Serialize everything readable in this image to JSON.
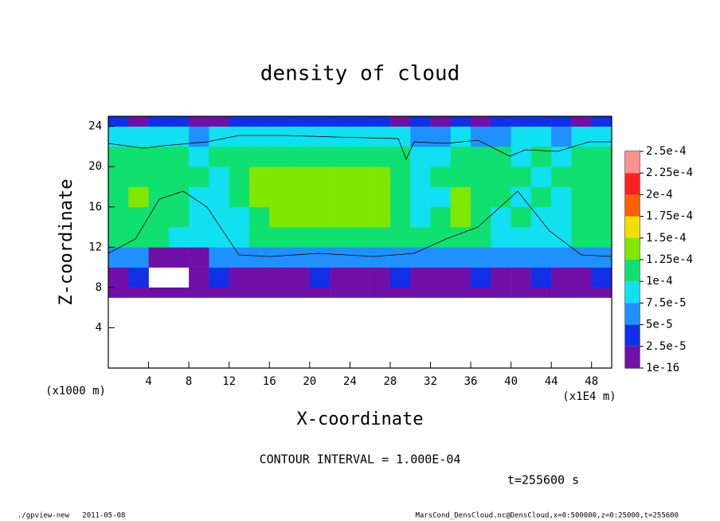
{
  "chart_data": {
    "type": "heatmap",
    "title": "density of cloud",
    "xlabel": "X-coordinate",
    "ylabel": "Z-coordinate",
    "x_unit": "(x1E4 m)",
    "y_unit": "(x1000 m)",
    "xlim": [
      0,
      50
    ],
    "ylim": [
      0,
      25
    ],
    "xticks": [
      4,
      8,
      12,
      16,
      20,
      24,
      28,
      32,
      36,
      40,
      44,
      48
    ],
    "yticks": [
      4,
      8,
      12,
      16,
      20,
      24
    ],
    "xbins": [
      0,
      2,
      4,
      6,
      8,
      10,
      12,
      14,
      16,
      18,
      20,
      22,
      24,
      26,
      28,
      30,
      32,
      34,
      36,
      38,
      40,
      42,
      44,
      46,
      48,
      50
    ],
    "ybins": [
      0,
      7,
      8,
      10,
      12,
      14,
      16,
      18,
      20,
      22,
      24,
      25
    ],
    "z": [
      [
        null,
        null,
        null,
        null,
        null,
        null,
        null,
        null,
        null,
        null,
        null,
        null,
        null,
        null,
        null,
        null,
        null,
        null,
        null,
        null,
        null,
        null,
        null,
        null,
        null
      ],
      [
        5e-06,
        5e-06,
        5e-06,
        5e-06,
        5e-06,
        5e-06,
        5e-06,
        5e-06,
        5e-06,
        5e-06,
        5e-06,
        5e-06,
        5e-06,
        5e-06,
        5e-06,
        5e-06,
        5e-06,
        5e-06,
        5e-06,
        5e-06,
        5e-06,
        5e-06,
        5e-06,
        5e-06,
        5e-06
      ],
      [
        2e-05,
        3e-05,
        null,
        null,
        2e-05,
        3e-05,
        1e-05,
        2e-05,
        1e-05,
        2e-05,
        3e-05,
        2e-05,
        1e-05,
        2e-05,
        3e-05,
        2e-05,
        1e-05,
        2e-05,
        3e-05,
        1e-05,
        2e-05,
        3e-05,
        1e-05,
        2e-05,
        3e-05
      ],
      [
        6e-05,
        5e-05,
        1e-05,
        1e-05,
        1e-05,
        6e-05,
        6e-05,
        6e-05,
        5e-05,
        6e-05,
        6e-05,
        6e-05,
        5e-05,
        6e-05,
        6e-05,
        6e-05,
        5e-05,
        6e-05,
        6e-05,
        6e-05,
        5e-05,
        6e-05,
        6e-05,
        6e-05,
        6e-05
      ],
      [
        0.000105,
        0.00011,
        0.0001,
        8e-05,
        8e-05,
        8e-05,
        8e-05,
        0.00011,
        0.00011,
        0.00011,
        0.00011,
        0.00011,
        0.00011,
        0.00011,
        0.00011,
        0.000105,
        0.00011,
        0.00011,
        0.00011,
        8e-05,
        8e-05,
        8e-05,
        8e-05,
        0.000105,
        0.000105
      ],
      [
        0.00012,
        0.00012,
        0.000115,
        0.00011,
        8e-05,
        8e-05,
        8e-05,
        0.00012,
        0.000125,
        0.00013,
        0.00013,
        0.00013,
        0.00013,
        0.000125,
        0.00012,
        8e-05,
        0.00012,
        0.000125,
        0.00012,
        8e-05,
        0.00011,
        8e-05,
        8e-05,
        0.000115,
        0.000115
      ],
      [
        0.00012,
        0.000125,
        0.00012,
        0.000115,
        8e-05,
        8e-05,
        0.0001,
        0.000125,
        0.00013,
        0.000135,
        0.00014,
        0.000135,
        0.00013,
        0.00013,
        0.00012,
        8e-05,
        8e-05,
        0.000125,
        0.00012,
        0.00011,
        8e-05,
        0.00011,
        8e-05,
        0.000115,
        0.00012
      ],
      [
        0.00012,
        0.00012,
        0.00012,
        0.00011,
        0.00011,
        8e-05,
        0.00012,
        0.000125,
        0.00013,
        0.00013,
        0.00013,
        0.00013,
        0.00013,
        0.000125,
        0.00012,
        8e-05,
        0.00011,
        0.00012,
        0.00012,
        0.000115,
        0.00011,
        8e-05,
        0.00011,
        0.000115,
        0.00012
      ],
      [
        0.000115,
        0.000115,
        0.00011,
        0.00011,
        8e-05,
        0.00011,
        0.000115,
        0.00012,
        0.00012,
        0.00012,
        0.00012,
        0.00012,
        0.00012,
        0.00012,
        0.00011,
        8e-05,
        8e-05,
        0.00011,
        0.00011,
        0.000115,
        8e-05,
        0.000105,
        8e-05,
        0.00011,
        0.00011
      ],
      [
        8e-05,
        8e-05,
        8e-05,
        8e-05,
        5.5e-05,
        8e-05,
        8e-05,
        8e-05,
        8e-05,
        8e-05,
        8e-05,
        8e-05,
        8e-05,
        8e-05,
        8e-05,
        5.5e-05,
        5.5e-05,
        8e-05,
        5.5e-05,
        5.5e-05,
        8e-05,
        8e-05,
        5.5e-05,
        8e-05,
        8e-05
      ],
      [
        4e-05,
        2e-05,
        4e-05,
        4e-05,
        2e-05,
        2e-05,
        4e-05,
        4e-05,
        4e-05,
        4e-05,
        4e-05,
        4e-05,
        4e-05,
        4e-05,
        2e-05,
        4e-05,
        2e-05,
        4e-05,
        2e-05,
        4e-05,
        4e-05,
        4e-05,
        4e-05,
        2e-05,
        4e-05
      ]
    ],
    "levels": [
      1e-16,
      {
        "value": 2.5e-05,
        "label": "2.5e-5"
      },
      {
        "value": 5e-05,
        "label": "5e-5"
      },
      {
        "value": 7.5e-05,
        "label": "7.5e-5"
      },
      {
        "value": 0.0001,
        "label": "1e-4"
      },
      {
        "value": 0.000125,
        "label": "1.25e-4"
      },
      {
        "value": 0.00015,
        "label": "1.5e-4"
      },
      {
        "value": 0.000175,
        "label": "1.75e-4"
      },
      {
        "value": 0.0002,
        "label": "2e-4"
      },
      {
        "value": 0.000225,
        "label": "2.25e-4"
      },
      {
        "value": 0.00025,
        "label": "2.5e-4"
      }
    ],
    "colors": [
      "#7010a8",
      "#1030e8",
      "#2090ff",
      "#10e0f0",
      "#10e070",
      "#80e800",
      "#f0e000",
      "#ff6000",
      "#ff2020",
      "#ff9090"
    ],
    "annotation": "CONTOUR INTERVAL = 1.000E-04",
    "time_label": "t=255600 s",
    "footer_left": "./gpview-new   2011-05-08",
    "footer_right": "MarsCond_DensCloud.nc@DensCloud,x=0:500000,z=0:25000,t=255600"
  }
}
